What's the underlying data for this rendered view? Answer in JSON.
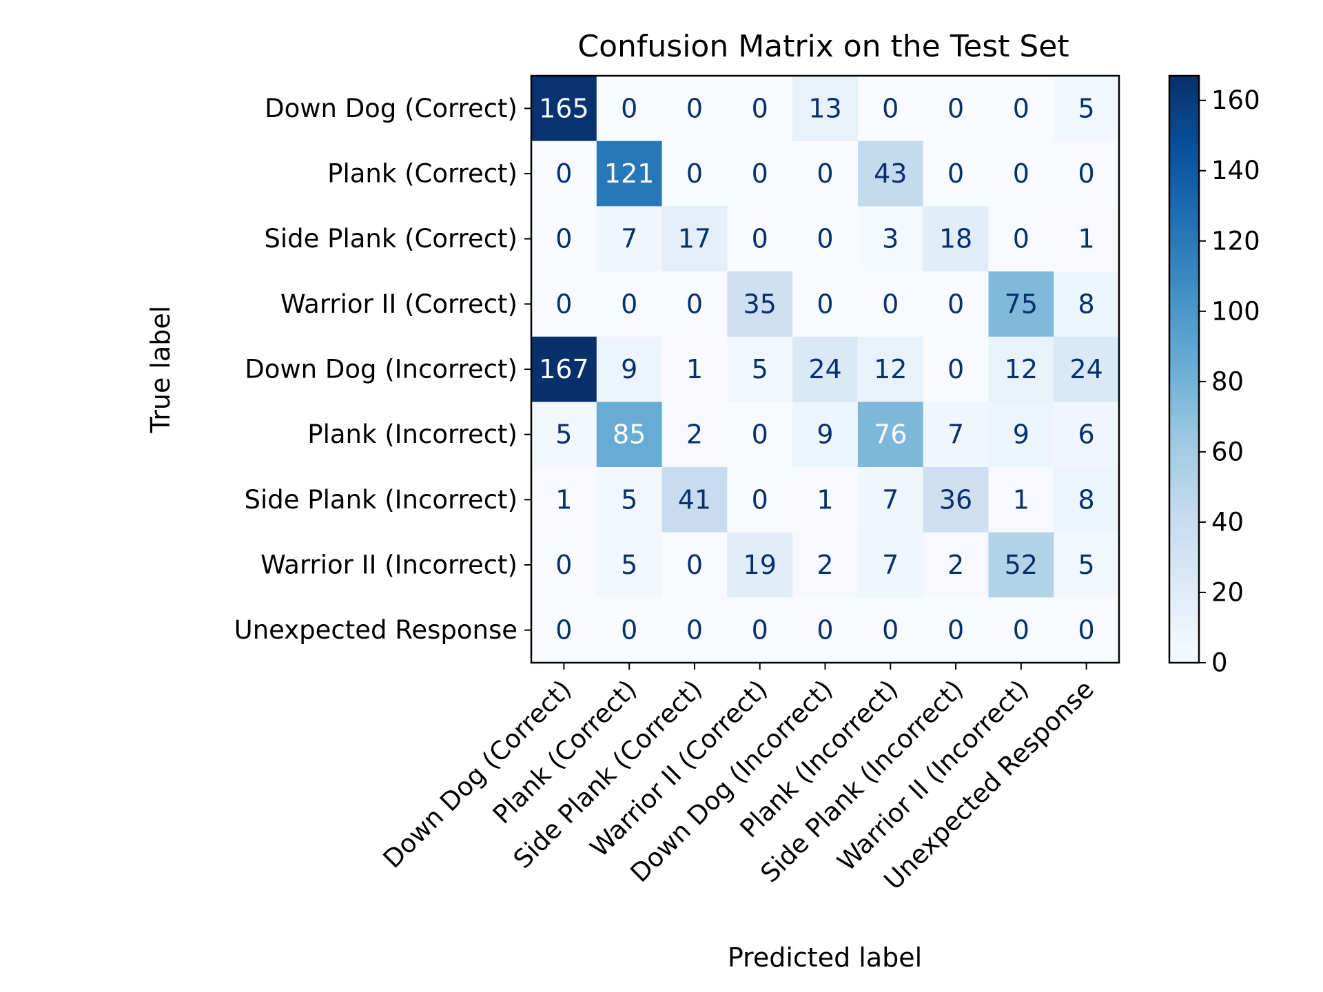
{
  "chart_data": {
    "type": "heatmap",
    "title": "Confusion Matrix on the Test Set",
    "xlabel": "Predicted label",
    "ylabel": "True label",
    "labels": [
      "Down Dog (Correct)",
      "Plank (Correct)",
      "Side Plank (Correct)",
      "Warrior II (Correct)",
      "Down Dog (Incorrect)",
      "Plank (Incorrect)",
      "Side Plank (Incorrect)",
      "Warrior II (Incorrect)",
      "Unexpected Response"
    ],
    "matrix": [
      [
        165,
        0,
        0,
        0,
        13,
        0,
        0,
        0,
        5
      ],
      [
        0,
        121,
        0,
        0,
        0,
        43,
        0,
        0,
        0
      ],
      [
        0,
        7,
        17,
        0,
        0,
        3,
        18,
        0,
        1
      ],
      [
        0,
        0,
        0,
        35,
        0,
        0,
        0,
        75,
        8
      ],
      [
        167,
        9,
        1,
        5,
        24,
        12,
        0,
        12,
        24
      ],
      [
        5,
        85,
        2,
        0,
        9,
        76,
        7,
        9,
        6
      ],
      [
        1,
        5,
        41,
        0,
        1,
        7,
        36,
        1,
        8
      ],
      [
        0,
        5,
        0,
        19,
        2,
        7,
        2,
        52,
        5
      ],
      [
        0,
        0,
        0,
        0,
        0,
        0,
        0,
        0,
        0
      ]
    ],
    "colormap": "Blues",
    "color_range": [
      0,
      167
    ],
    "colorbar_ticks": [
      "0",
      "20",
      "40",
      "60",
      "80",
      "100",
      "120",
      "140",
      "160"
    ],
    "grid": false
  }
}
